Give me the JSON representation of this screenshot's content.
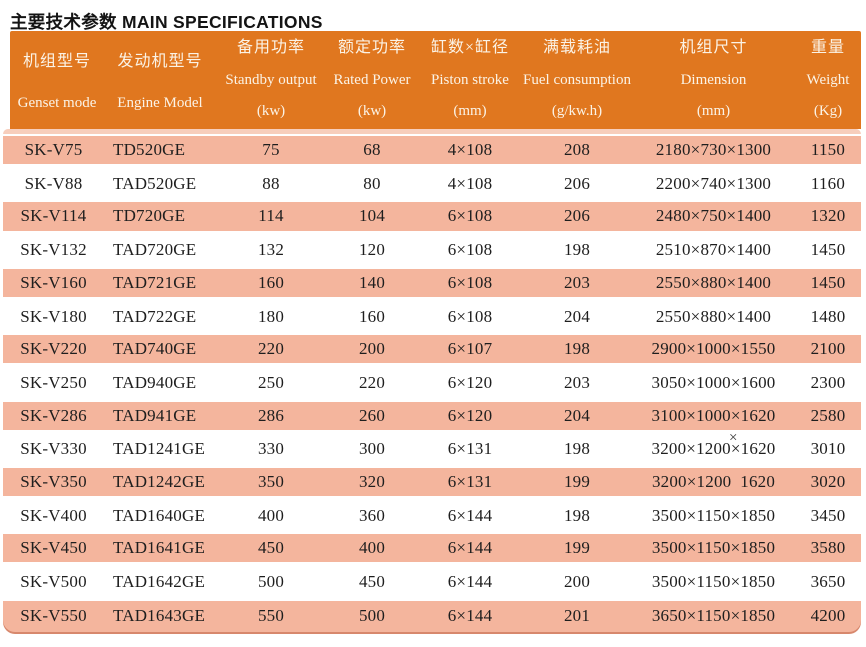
{
  "title": "主要技术参数 MAIN SPECIFICATIONS",
  "colors": {
    "header_bg": "#E0771F",
    "header_text": "#FBF3E6",
    "row_alt_bg": "#F4B59D",
    "row_bg": "#FFFFFF",
    "separator_bg": "#F7CEBC",
    "bottom_edge": "#D7886D",
    "body_text": "#1E1E1E",
    "title_text": "#141414"
  },
  "artifact": {
    "stray_multiply_sign": "×"
  },
  "table": {
    "columns": [
      {
        "zh": "机组型号",
        "en": "Genset mode",
        "unit": ""
      },
      {
        "zh": "发动机型号",
        "en": "Engine Model",
        "unit": ""
      },
      {
        "zh": "备用功率",
        "en": "Standby output",
        "unit": "(kw)"
      },
      {
        "zh": "额定功率",
        "en": "Rated Power",
        "unit": "(kw)"
      },
      {
        "zh": "缸数×缸径",
        "en": "Piston stroke",
        "unit": "(mm)"
      },
      {
        "zh": "满载耗油",
        "en": "Fuel consumption",
        "unit": "(g/kw.h)"
      },
      {
        "zh": "机组尺寸",
        "en": "Dimension",
        "unit": "(mm)"
      },
      {
        "zh": "重量",
        "en": "Weight",
        "unit": "(Kg)"
      }
    ],
    "rows": [
      [
        "SK-V75",
        "TD520GE",
        "75",
        "68",
        "4×108",
        "208",
        "2180×730×1300",
        "1150"
      ],
      [
        "SK-V88",
        "TAD520GE",
        "88",
        "80",
        "4×108",
        "206",
        "2200×740×1300",
        "1160"
      ],
      [
        "SK-V114",
        "TD720GE",
        "114",
        "104",
        "6×108",
        "206",
        "2480×750×1400",
        "1320"
      ],
      [
        "SK-V132",
        "TAD720GE",
        "132",
        "120",
        "6×108",
        "198",
        "2510×870×1400",
        "1450"
      ],
      [
        "SK-V160",
        "TAD721GE",
        "160",
        "140",
        "6×108",
        "203",
        "2550×880×1400",
        "1450"
      ],
      [
        "SK-V180",
        "TAD722GE",
        "180",
        "160",
        "6×108",
        "204",
        "2550×880×1400",
        "1480"
      ],
      [
        "SK-V220",
        "TAD740GE",
        "220",
        "200",
        "6×107",
        "198",
        "2900×1000×1550",
        "2100"
      ],
      [
        "SK-V250",
        "TAD940GE",
        "250",
        "220",
        "6×120",
        "203",
        "3050×1000×1600",
        "2300"
      ],
      [
        "SK-V286",
        "TAD941GE",
        "286",
        "260",
        "6×120",
        "204",
        "3100×1000×1620",
        "2580"
      ],
      [
        "SK-V330",
        "TAD1241GE",
        "330",
        "300",
        "6×131",
        "198",
        "3200×1200×1620",
        "3010"
      ],
      [
        "SK-V350",
        "TAD1242GE",
        "350",
        "320",
        "6×131",
        "199",
        "3200×1200  1620",
        "3020"
      ],
      [
        "SK-V400",
        "TAD1640GE",
        "400",
        "360",
        "6×144",
        "198",
        "3500×1150×1850",
        "3450"
      ],
      [
        "SK-V450",
        "TAD1641GE",
        "450",
        "400",
        "6×144",
        "199",
        "3500×1150×1850",
        "3580"
      ],
      [
        "SK-V500",
        "TAD1642GE",
        "500",
        "450",
        "6×144",
        "200",
        "3500×1150×1850",
        "3650"
      ],
      [
        "SK-V550",
        "TAD1643GE",
        "550",
        "500",
        "6×144",
        "201",
        "3650×1150×1850",
        "4200"
      ]
    ]
  }
}
